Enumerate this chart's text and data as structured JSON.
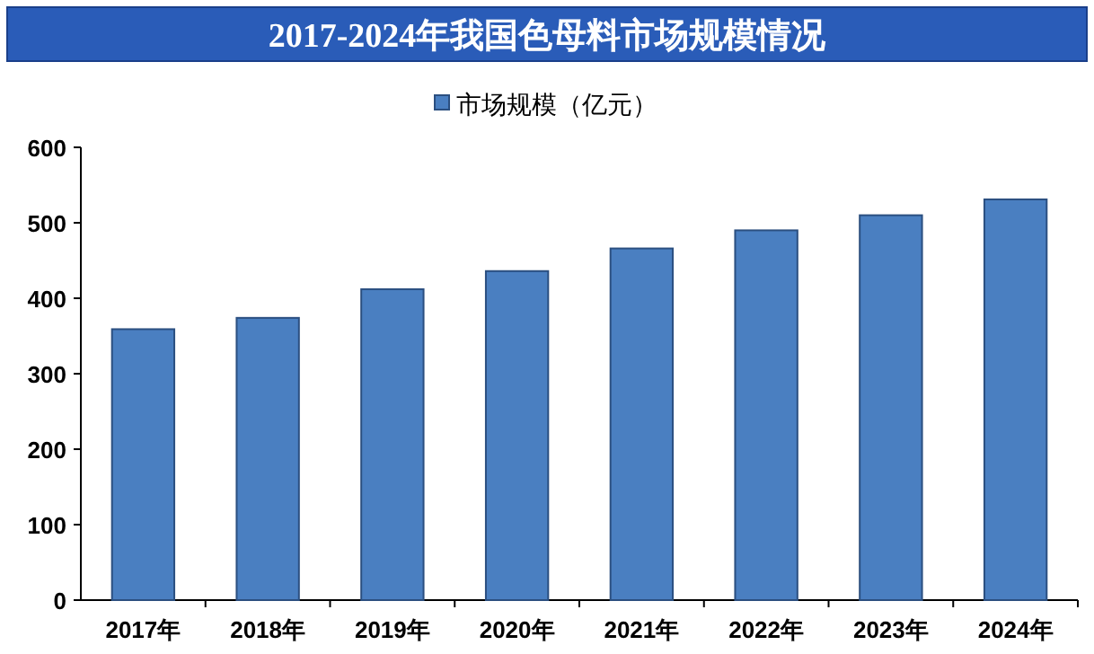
{
  "chart_data": {
    "type": "bar",
    "title": "2017-2024年我国色母料市场规模情况",
    "categories": [
      "2017年",
      "2018年",
      "2019年",
      "2020年",
      "2021年",
      "2022年",
      "2023年",
      "2024年"
    ],
    "series": [
      {
        "name": "市场规模（亿元）",
        "color": "#4a7fc1",
        "values": [
          359,
          374,
          412,
          436,
          466,
          490,
          510,
          531
        ]
      }
    ],
    "ylim": [
      0,
      600
    ],
    "yticks": [
      0,
      100,
      200,
      300,
      400,
      500,
      600
    ],
    "grid": false,
    "legend": "top"
  }
}
